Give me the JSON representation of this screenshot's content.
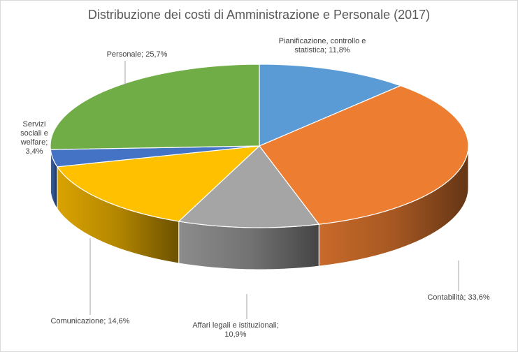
{
  "chart_data": {
    "type": "pie",
    "title": "Distribuzione dei costi di Amministrazione e Personale (2017)",
    "style": "3d-pie",
    "slices": [
      {
        "label": "Pianificazione, controllo e statistica",
        "value": 11.8,
        "label_lines": [
          "Pianificazione, controllo e",
          "statistica; 11,8%"
        ],
        "color": "#5B9BD5"
      },
      {
        "label": "Contabilità",
        "value": 33.6,
        "label_lines": [
          "Contabilità; 33,6%"
        ],
        "color": "#ED7D31"
      },
      {
        "label": "Affari legali e istituzionali",
        "value": 10.9,
        "label_lines": [
          "Affari legali e istituzionali;",
          "10,9%"
        ],
        "color": "#A5A5A5"
      },
      {
        "label": "Comunicazione",
        "value": 14.6,
        "label_lines": [
          "Comunicazione; 14,6%"
        ],
        "color": "#FFC000"
      },
      {
        "label": "Servizi sociali e welfare",
        "value": 3.4,
        "label_lines": [
          "Servizi",
          "sociali e",
          "welfare;",
          "3,4%"
        ],
        "color": "#4472C4"
      },
      {
        "label": "Personale",
        "value": 25.7,
        "label_lines": [
          "Personale; 25,7%"
        ],
        "color": "#70AD47"
      }
    ]
  }
}
